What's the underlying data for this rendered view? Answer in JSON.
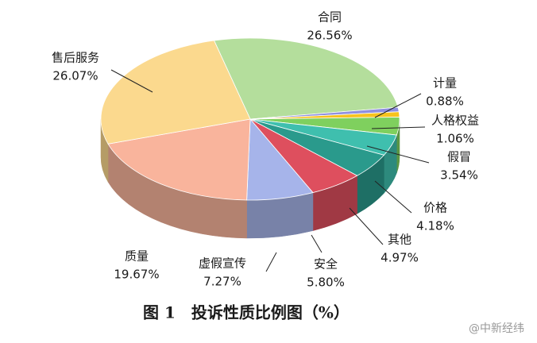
{
  "chart_data": {
    "type": "pie",
    "title": "图 1　投诉性质比例图（%）",
    "categories": [
      "合同",
      "计量",
      "人格权益",
      "假冒",
      "价格",
      "其他",
      "安全",
      "虚假宣传",
      "质量",
      "售后服务"
    ],
    "values": [
      26.56,
      0.88,
      1.06,
      3.54,
      4.18,
      4.97,
      5.8,
      7.27,
      19.67,
      26.07
    ],
    "value_labels": [
      "26.56%",
      "0.88%",
      "1.06%",
      "3.54%",
      "4.18%",
      "4.97%",
      "5.80%",
      "7.27%",
      "19.67%",
      "26.07%"
    ],
    "colors": [
      "#b4de9c",
      "#8f8fe0",
      "#f7c31e",
      "#7fd05e",
      "#3fbfae",
      "#2a9a8c",
      "#de4f5e",
      "#a6b4ea",
      "#f9b49c",
      "#fbd98e"
    ]
  },
  "watermark": "@中新经纬"
}
